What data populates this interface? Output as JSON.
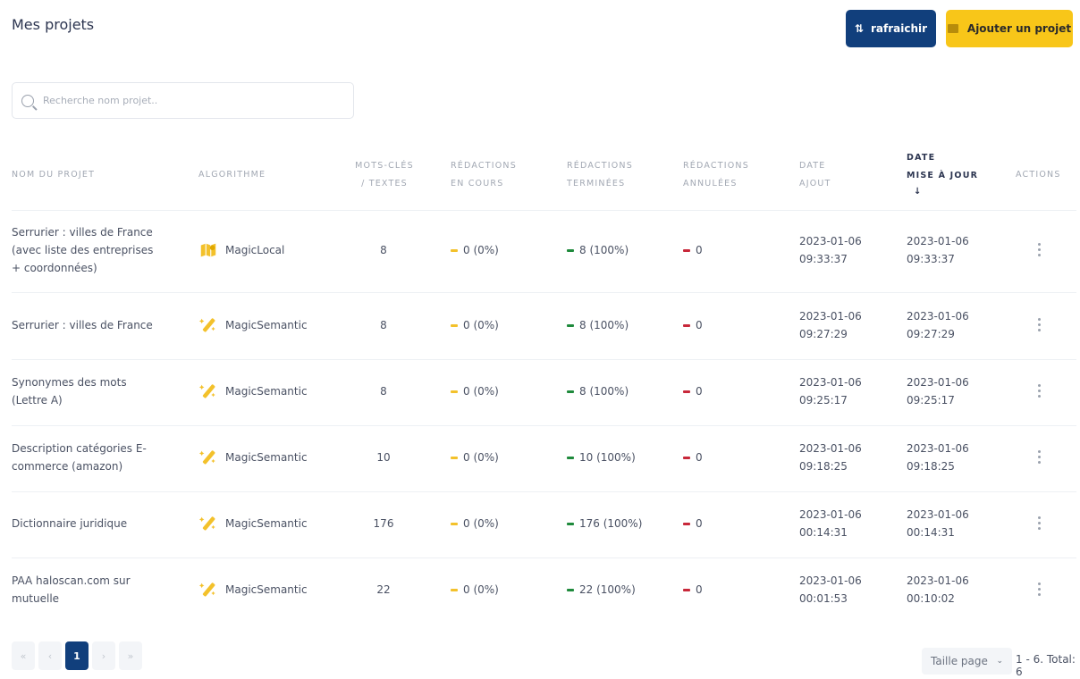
{
  "page": {
    "title": "Mes projets"
  },
  "toolbar": {
    "refresh_label": "rafraichir",
    "add_label": "Ajouter un projet"
  },
  "search": {
    "placeholder": "Recherche nom projet..",
    "value": ""
  },
  "table": {
    "headers": {
      "name": "NOM DU PROJET",
      "algo": "ALGORITHME",
      "keywords_1": "MOTS-CLÉS",
      "keywords_2": "/ TEXTES",
      "in_progress_1": "RÉDACTIONS",
      "in_progress_2": "EN COURS",
      "done_1": "RÉDACTIONS",
      "done_2": "TERMINÉES",
      "cancelled_1": "RÉDACTIONS",
      "cancelled_2": "ANNULÉES",
      "added_1": "DATE",
      "added_2": "AJOUT",
      "updated_1": "DATE",
      "updated_2": "MISE À JOUR",
      "actions": "ACTIONS"
    },
    "sort_indicator": "↓",
    "rows": [
      {
        "name": "Serrurier : villes de France (avec liste des entreprises + coordonnées)",
        "algo": "MagicLocal",
        "algo_icon": "map-icon",
        "keywords": "8",
        "in_progress": "0 (0%)",
        "done": "8 (100%)",
        "cancelled": "0",
        "added_date": "2023-01-06",
        "added_time": "09:33:37",
        "updated_date": "2023-01-06",
        "updated_time": "09:33:37"
      },
      {
        "name": "Serrurier : villes de France",
        "algo": "MagicSemantic",
        "algo_icon": "magic-wand-icon",
        "keywords": "8",
        "in_progress": "0 (0%)",
        "done": "8 (100%)",
        "cancelled": "0",
        "added_date": "2023-01-06",
        "added_time": "09:27:29",
        "updated_date": "2023-01-06",
        "updated_time": "09:27:29"
      },
      {
        "name": "Synonymes des mots (Lettre A)",
        "algo": "MagicSemantic",
        "algo_icon": "magic-wand-icon",
        "keywords": "8",
        "in_progress": "0 (0%)",
        "done": "8 (100%)",
        "cancelled": "0",
        "added_date": "2023-01-06",
        "added_time": "09:25:17",
        "updated_date": "2023-01-06",
        "updated_time": "09:25:17"
      },
      {
        "name": "Description catégories E-commerce (amazon)",
        "algo": "MagicSemantic",
        "algo_icon": "magic-wand-icon",
        "keywords": "10",
        "in_progress": "0 (0%)",
        "done": "10 (100%)",
        "cancelled": "0",
        "added_date": "2023-01-06",
        "added_time": "09:18:25",
        "updated_date": "2023-01-06",
        "updated_time": "09:18:25"
      },
      {
        "name": "Dictionnaire juridique",
        "algo": "MagicSemantic",
        "algo_icon": "magic-wand-icon",
        "keywords": "176",
        "in_progress": "0 (0%)",
        "done": "176 (100%)",
        "cancelled": "0",
        "added_date": "2023-01-06",
        "added_time": "00:14:31",
        "updated_date": "2023-01-06",
        "updated_time": "00:14:31"
      },
      {
        "name": "PAA haloscan.com sur mutuelle",
        "algo": "MagicSemantic",
        "algo_icon": "magic-wand-icon",
        "keywords": "22",
        "in_progress": "0 (0%)",
        "done": "22 (100%)",
        "cancelled": "0",
        "added_date": "2023-01-06",
        "added_time": "00:01:53",
        "updated_date": "2023-01-06",
        "updated_time": "00:10:02"
      }
    ]
  },
  "pagination": {
    "first": "«",
    "prev": "‹",
    "current": "1",
    "next": "›",
    "last": "»",
    "page_size_label": "Taille page",
    "total_text": "1 - 6. Total: 6"
  },
  "colors": {
    "primary": "#113f7c",
    "accent": "#f8c619",
    "in_progress": "#f3c12b",
    "done": "#1f8a3c",
    "cancelled": "#c8283a"
  }
}
